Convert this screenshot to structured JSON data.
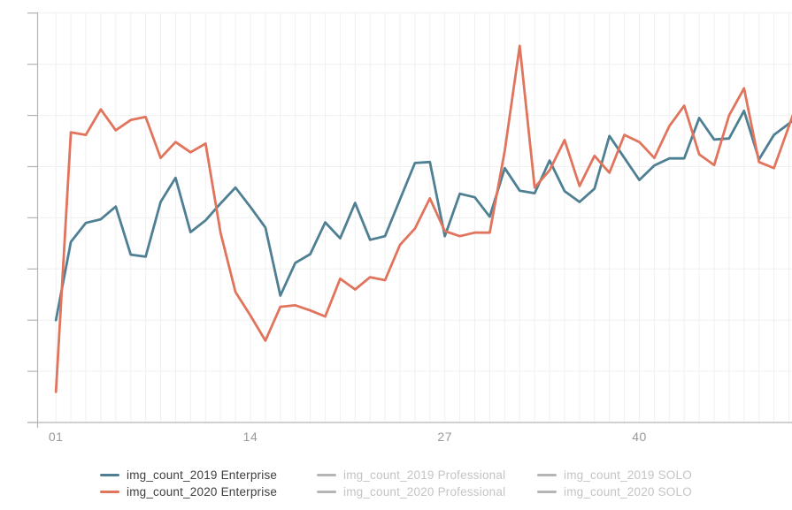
{
  "chart_data": {
    "type": "line",
    "legend_position": "bottom",
    "grid": true,
    "x": [
      1,
      2,
      3,
      4,
      5,
      6,
      7,
      8,
      9,
      10,
      11,
      12,
      13,
      14,
      15,
      16,
      17,
      18,
      19,
      20,
      21,
      22,
      23,
      24,
      25,
      26,
      27,
      28,
      29,
      30,
      31,
      32,
      33,
      34,
      35,
      36,
      37,
      38,
      39,
      40,
      41,
      42,
      43,
      44,
      45,
      46,
      47,
      48,
      49,
      50
    ],
    "x_tick_labels": [
      {
        "label": "01",
        "x": 1
      },
      {
        "label": "14",
        "x": 14
      },
      {
        "label": "27",
        "x": 27
      },
      {
        "label": "40",
        "x": 40
      }
    ],
    "y_axis": {
      "labels_visible": false,
      "ylim": [
        0,
        8
      ],
      "gridline_step_units": 1
    },
    "units_note": "y values estimated in horizontal-gridline units above the x-axis; numeric y-axis labels are cropped off the left edge of the screenshot",
    "series": [
      {
        "name": "img_count_2019 Enterprise",
        "color": "#4e7f93",
        "values": [
          2.0,
          3.53,
          3.9,
          3.97,
          4.22,
          3.28,
          3.24,
          4.31,
          4.78,
          3.72,
          3.95,
          4.28,
          4.59,
          4.21,
          3.81,
          2.48,
          3.12,
          3.29,
          3.91,
          3.6,
          4.29,
          3.57,
          3.64,
          4.36,
          5.07,
          5.09,
          3.64,
          4.47,
          4.4,
          4.02,
          4.97,
          4.53,
          4.48,
          5.12,
          4.52,
          4.31,
          4.57,
          5.6,
          5.17,
          4.74,
          5.02,
          5.16,
          5.16,
          5.95,
          5.53,
          5.55,
          6.09,
          5.14,
          5.62,
          5.84
        ]
      },
      {
        "name": "img_count_2020 Enterprise",
        "color": "#e0745c",
        "values": [
          0.6,
          5.67,
          5.62,
          6.12,
          5.71,
          5.91,
          5.97,
          5.17,
          5.48,
          5.28,
          5.45,
          3.71,
          2.55,
          2.09,
          1.6,
          2.26,
          2.29,
          2.19,
          2.07,
          2.81,
          2.6,
          2.84,
          2.78,
          3.47,
          3.79,
          4.38,
          3.74,
          3.64,
          3.71,
          3.71,
          5.31,
          7.36,
          4.59,
          4.93,
          5.52,
          4.62,
          5.21,
          4.88,
          5.62,
          5.48,
          5.17,
          5.79,
          6.19,
          5.24,
          5.03,
          6.0,
          6.53,
          5.09,
          4.97,
          5.79
        ]
      }
    ],
    "hidden_series": [
      "img_count_2019 Professional",
      "img_count_2020 Professional",
      "img_count_2019 SOLO",
      "img_count_2020 SOLO"
    ]
  },
  "legend": {
    "items": [
      {
        "label": "img_count_2019 Enterprise",
        "color": "#4e7f93",
        "active": true
      },
      {
        "label": "img_count_2020 Enterprise",
        "color": "#e0745c",
        "active": true
      },
      {
        "label": "img_count_2019 Professional",
        "color": "#b5b5b5",
        "active": false
      },
      {
        "label": "img_count_2020 Professional",
        "color": "#b5b5b5",
        "active": false
      },
      {
        "label": "img_count_2019 SOLO",
        "color": "#b5b5b5",
        "active": false
      },
      {
        "label": "img_count_2020 SOLO",
        "color": "#b5b5b5",
        "active": false
      }
    ]
  },
  "colors": {
    "axis": "#b3b3b3",
    "gridline": "#f0f0f0",
    "x_label": "#999999"
  }
}
